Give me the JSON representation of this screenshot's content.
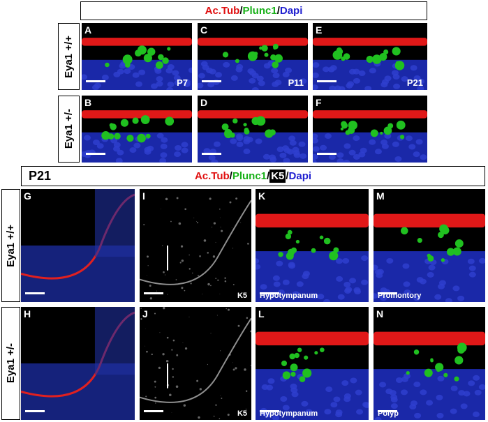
{
  "top": {
    "header": [
      "Ac.Tub",
      "/",
      "Plunc1",
      "/",
      "Dapi"
    ],
    "rows": [
      {
        "label": "Eya1 +/+",
        "panels": [
          {
            "letter": "A",
            "caption": "P7"
          },
          {
            "letter": "C",
            "caption": "P11"
          },
          {
            "letter": "E",
            "caption": "P21"
          }
        ]
      },
      {
        "label": "Eya1 +/-",
        "panels": [
          {
            "letter": "B"
          },
          {
            "letter": "D"
          },
          {
            "letter": "F"
          }
        ]
      }
    ]
  },
  "bottom": {
    "section": "P21",
    "header": [
      "Ac.Tub",
      "/",
      "Plunc1",
      "/",
      "K5",
      "/",
      "Dapi"
    ],
    "rows": [
      {
        "label": "Eya1 +/+",
        "panels": [
          {
            "letter": "G"
          },
          {
            "letter": "I",
            "caption": "K5"
          },
          {
            "letter": "K",
            "caption": "Hypotympanum"
          },
          {
            "letter": "M",
            "caption": "Promontory"
          }
        ]
      },
      {
        "label": "Eya1 +/-",
        "panels": [
          {
            "letter": "H"
          },
          {
            "letter": "J",
            "caption": "K5"
          },
          {
            "letter": "L",
            "caption": "Hypotympanum"
          },
          {
            "letter": "N",
            "caption": "Polyp"
          }
        ]
      }
    ]
  }
}
